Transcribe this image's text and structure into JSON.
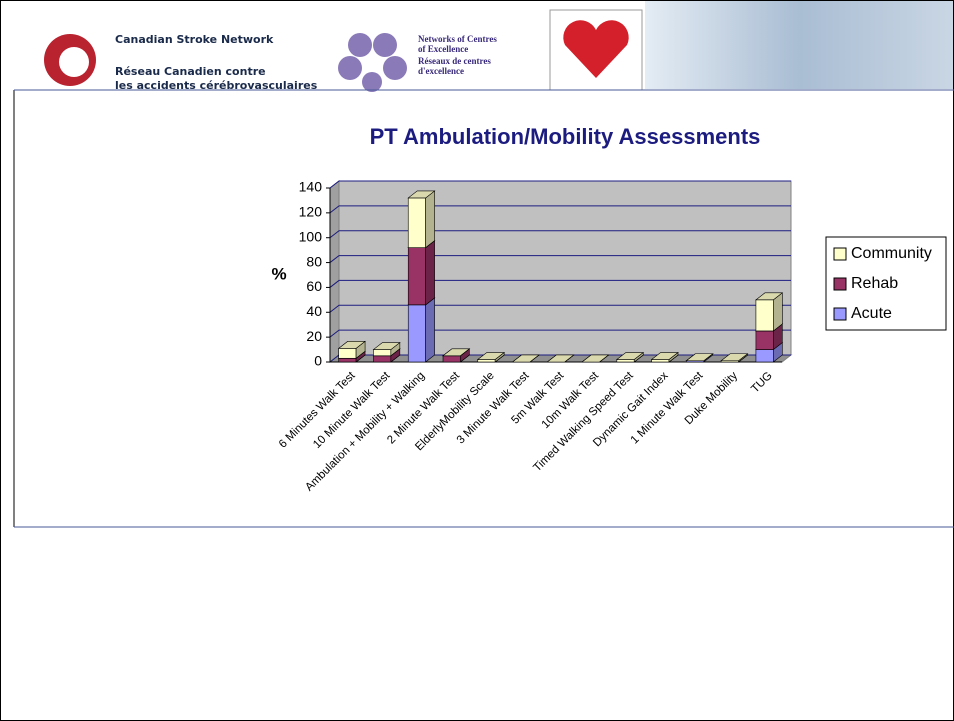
{
  "header": {
    "csn_en": "Canadian Stroke Network",
    "csn_fr_1": "Réseau Canadien contre",
    "csn_fr_2": "les accidents cérébrovasculaires",
    "nce_1": "Networks of Centres",
    "nce_2": "of Excellence",
    "nce_3": "Réseaux de centres",
    "nce_4": "d'excellence"
  },
  "chart_data": {
    "type": "stacked_bar_3d",
    "title": "PT Ambulation/Mobility Assessments",
    "y_label": "%",
    "categories": [
      "6 Minutes Walk Test",
      "10 Minute Walk Test",
      "Ambulation + Mobility + Walking",
      "2 Minute Walk Test",
      "ElderlyMobility Scale",
      "3 Minute Walk Test",
      "5m Walk Test",
      "10m Walk Test",
      "Timed Walking Speed Test",
      "Dynamic Gait Index",
      "1 Minute Walk Test",
      "Duke Mobility",
      "TUG"
    ],
    "series": [
      {
        "name": "Acute",
        "color": "#9999ff",
        "values": [
          0,
          0,
          46,
          0,
          0,
          0,
          0,
          0,
          0,
          0,
          1,
          0,
          10
        ]
      },
      {
        "name": "Rehab",
        "color": "#993366",
        "values": [
          3,
          5,
          46,
          5,
          0,
          0,
          0,
          0,
          0,
          0,
          0,
          0,
          15
        ]
      },
      {
        "name": "Community",
        "color": "#ffffcc",
        "values": [
          8,
          5,
          40,
          0,
          2,
          0,
          0,
          0,
          2,
          2,
          0,
          1,
          25
        ]
      }
    ],
    "ylim": [
      0,
      140
    ],
    "yticks": [
      0,
      20,
      40,
      60,
      80,
      100,
      120,
      140
    ],
    "grid": true,
    "legend": "right"
  }
}
